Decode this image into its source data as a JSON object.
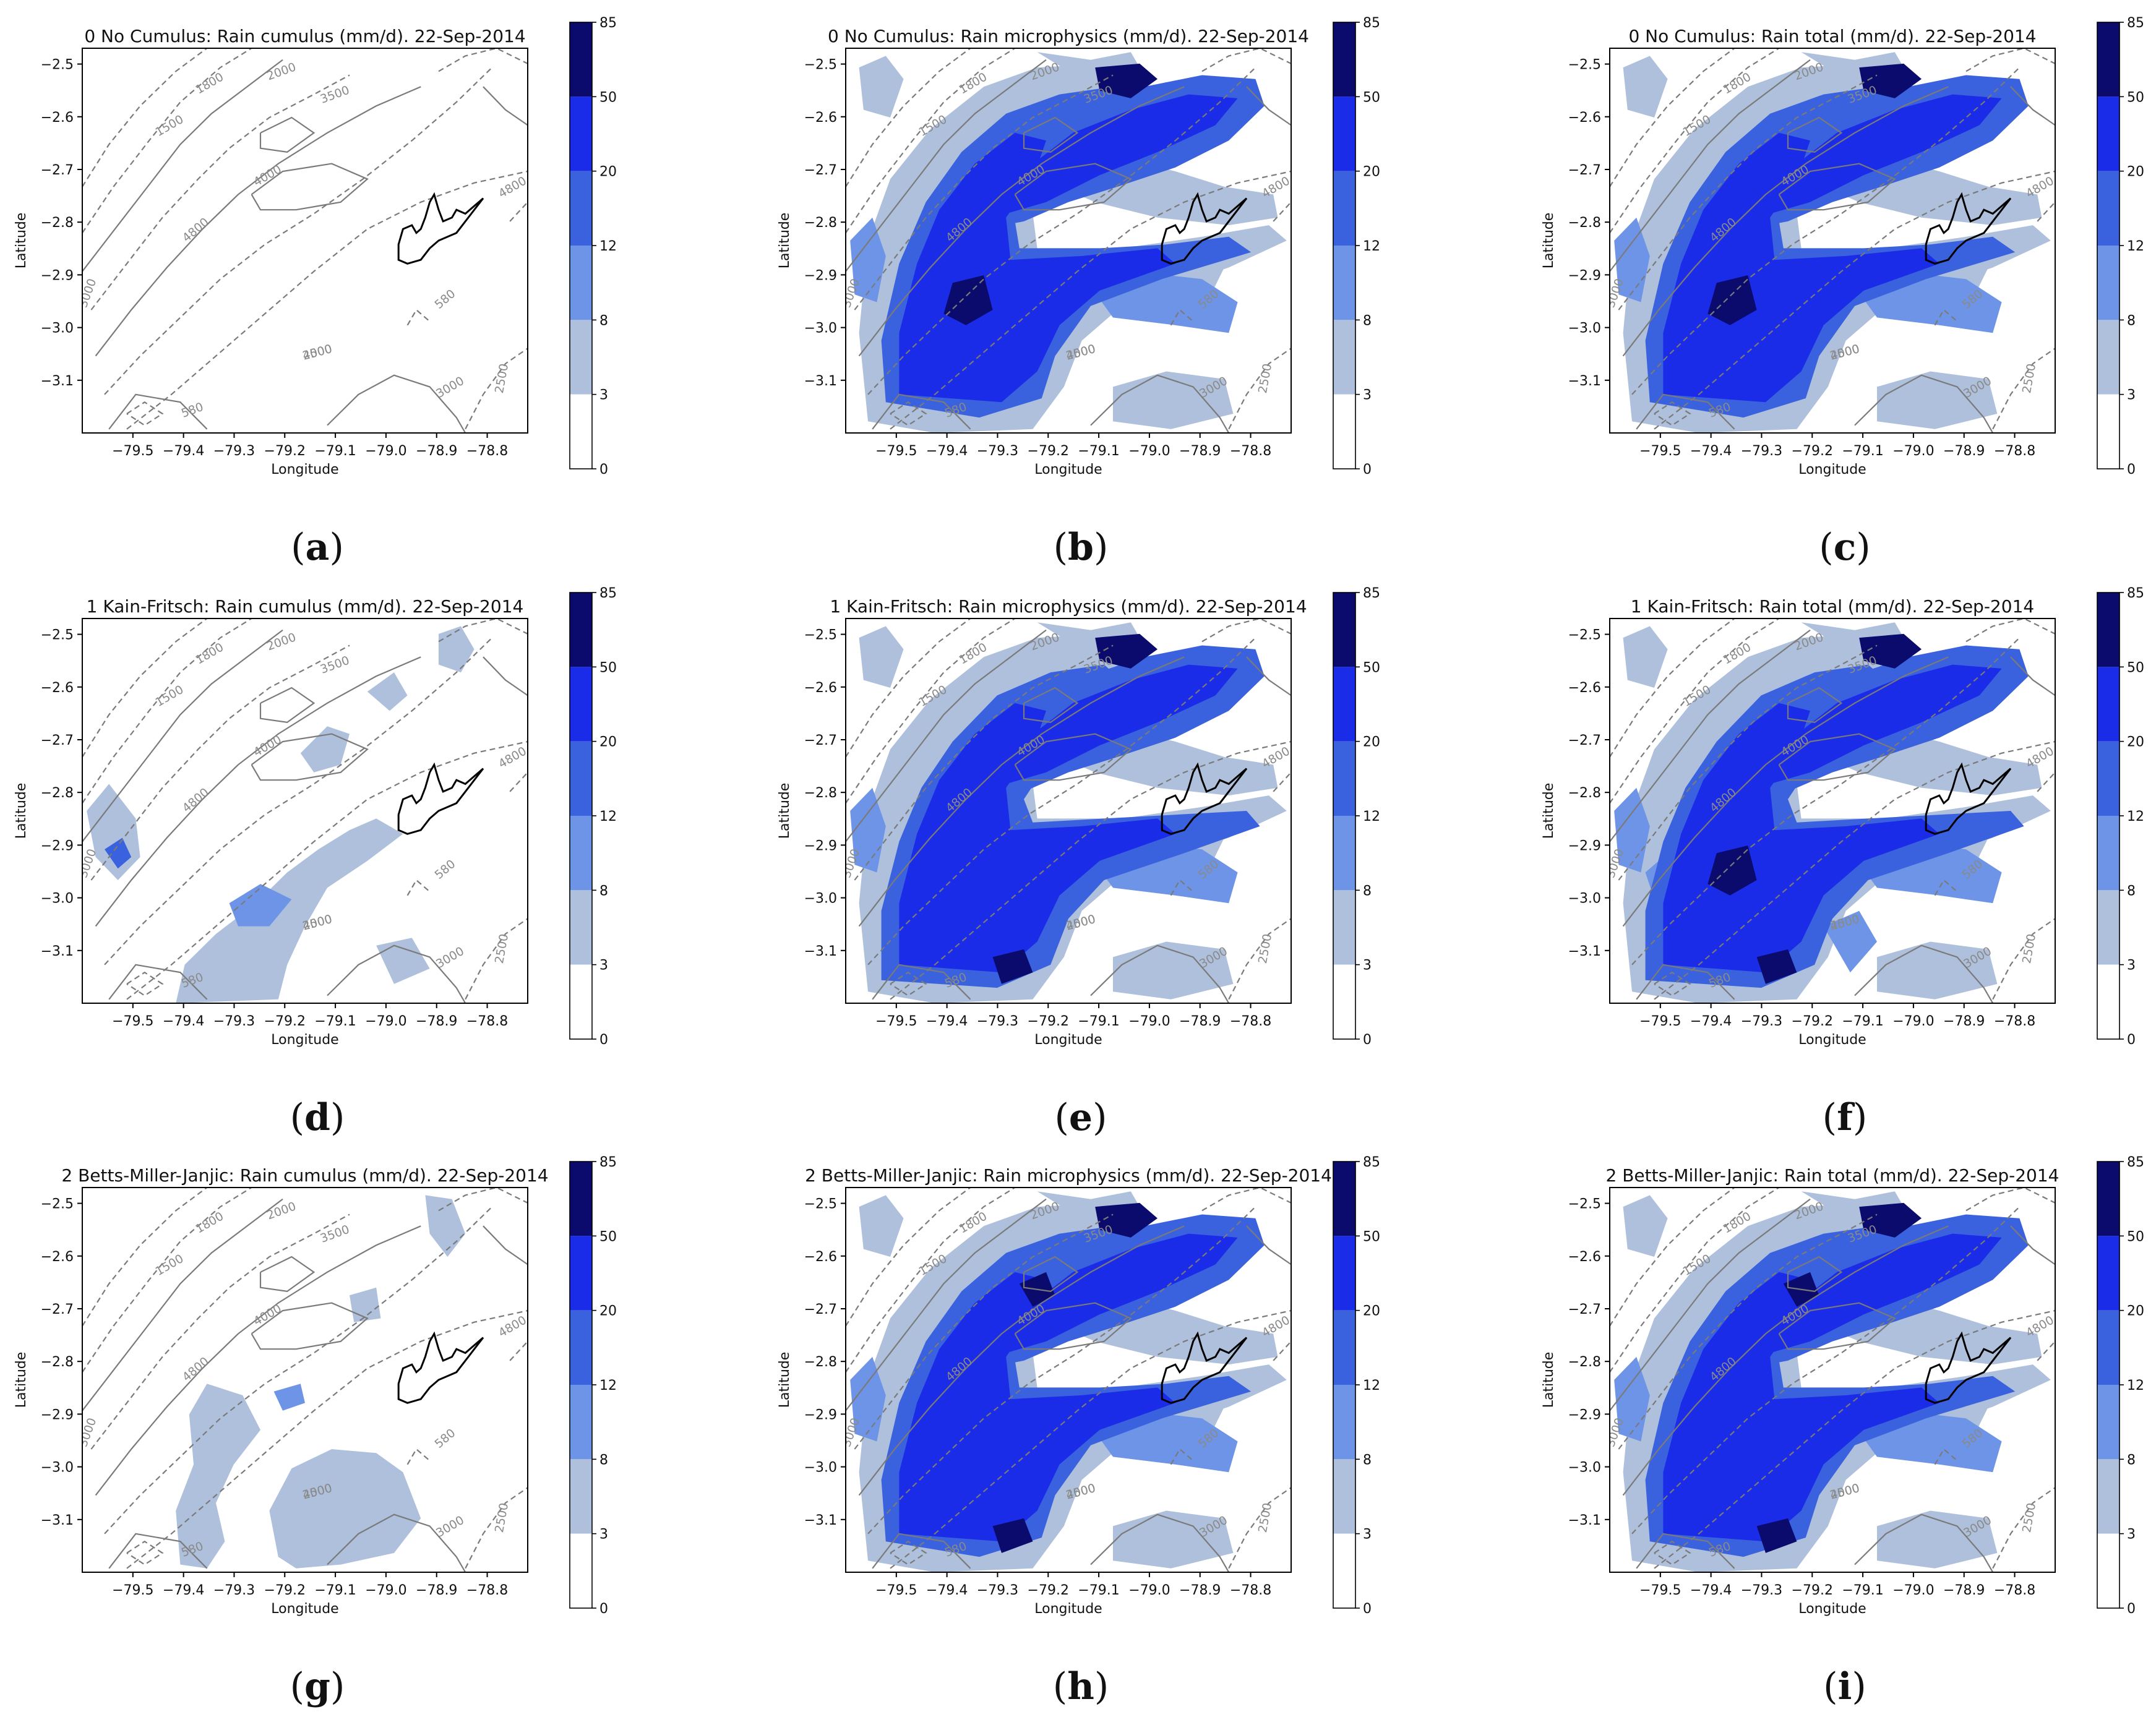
{
  "figure": {
    "colorbar_ticks": [
      "85",
      "50",
      "20",
      "12",
      "8",
      "3",
      "0"
    ],
    "colorbar_colors": [
      "#0b0b6e",
      "#1a2ce8",
      "#3b62de",
      "#6d94e6",
      "#aec0dc",
      "#ffffff"
    ],
    "contour_color": "#7a7a7a",
    "land_outline_color": "#000000"
  },
  "chart_data": [
    {
      "id": "a",
      "type": "heatmap",
      "title": "0 No Cumulus: Rain cumulus (mm/d). 22-Sep-2014",
      "xlabel": "Longitude",
      "ylabel": "Latitude",
      "letter": "a",
      "scheme": "nocu",
      "field": "cu",
      "xticks": [
        "−79.5",
        "−79.4",
        "−79.3",
        "−79.2",
        "−79.1",
        "−79.0",
        "−78.9",
        "−78.8"
      ],
      "yticks": [
        "−2.5",
        "−2.6",
        "−2.7",
        "−2.8",
        "−2.9",
        "−3.0",
        "−3.1"
      ],
      "xlim": [
        -79.6,
        -78.72
      ],
      "ylim": [
        -3.2,
        -2.47
      ],
      "colorbar_levels_mm_per_day": [
        0,
        3,
        8,
        12,
        20,
        50,
        85
      ],
      "contour_labels": [
        "1500",
        "1800",
        "2000",
        "3500",
        "4000",
        "4800",
        "3000",
        "2500",
        "580"
      ]
    },
    {
      "id": "b",
      "type": "heatmap",
      "title": "0 No Cumulus: Rain microphysics (mm/d). 22-Sep-2014",
      "xlabel": "Longitude",
      "ylabel": "Latitude",
      "letter": "b",
      "scheme": "nocu",
      "field": "mp",
      "xticks": [
        "−79.5",
        "−79.4",
        "−79.3",
        "−79.2",
        "−79.1",
        "−79.0",
        "−78.9",
        "−78.8"
      ],
      "yticks": [
        "−2.5",
        "−2.6",
        "−2.7",
        "−2.8",
        "−2.9",
        "−3.0",
        "−3.1"
      ],
      "xlim": [
        -79.6,
        -78.72
      ],
      "ylim": [
        -3.2,
        -2.47
      ],
      "colorbar_levels_mm_per_day": [
        0,
        3,
        8,
        12,
        20,
        50,
        85
      ],
      "contour_labels": [
        "1500",
        "1800",
        "2000",
        "3500",
        "4000",
        "4800",
        "3000",
        "2500",
        "580"
      ]
    },
    {
      "id": "c",
      "type": "heatmap",
      "title": "0 No Cumulus: Rain total (mm/d). 22-Sep-2014",
      "xlabel": "Longitude",
      "ylabel": "Latitude",
      "letter": "c",
      "scheme": "nocu",
      "field": "tot",
      "xticks": [
        "−79.5",
        "−79.4",
        "−79.3",
        "−79.2",
        "−79.1",
        "−79.0",
        "−78.9",
        "−78.8"
      ],
      "yticks": [
        "−2.5",
        "−2.6",
        "−2.7",
        "−2.8",
        "−2.9",
        "−3.0",
        "−3.1"
      ],
      "xlim": [
        -79.6,
        -78.72
      ],
      "ylim": [
        -3.2,
        -2.47
      ],
      "colorbar_levels_mm_per_day": [
        0,
        3,
        8,
        12,
        20,
        50,
        85
      ],
      "contour_labels": [
        "1500",
        "1800",
        "2000",
        "3500",
        "4000",
        "4800",
        "3000",
        "2500",
        "580"
      ]
    },
    {
      "id": "d",
      "type": "heatmap",
      "title": "1 Kain-Fritsch: Rain cumulus (mm/d). 22-Sep-2014",
      "xlabel": "Longitude",
      "ylabel": "Latitude",
      "letter": "d",
      "scheme": "kf",
      "field": "cu",
      "xticks": [
        "−79.5",
        "−79.4",
        "−79.3",
        "−79.2",
        "−79.1",
        "−79.0",
        "−78.9",
        "−78.8"
      ],
      "yticks": [
        "−2.5",
        "−2.6",
        "−2.7",
        "−2.8",
        "−2.9",
        "−3.0",
        "−3.1"
      ],
      "xlim": [
        -79.6,
        -78.72
      ],
      "ylim": [
        -3.2,
        -2.47
      ],
      "colorbar_levels_mm_per_day": [
        0,
        3,
        8,
        12,
        20,
        50,
        85
      ],
      "contour_labels": [
        "1500",
        "1800",
        "2000",
        "3500",
        "4000",
        "4800",
        "3000",
        "2500",
        "580"
      ]
    },
    {
      "id": "e",
      "type": "heatmap",
      "title": "1 Kain-Fritsch: Rain microphysics (mm/d). 22-Sep-2014",
      "xlabel": "Longitude",
      "ylabel": "Latitude",
      "letter": "e",
      "scheme": "kf",
      "field": "mp",
      "xticks": [
        "−79.5",
        "−79.4",
        "−79.3",
        "−79.2",
        "−79.1",
        "−79.0",
        "−78.9",
        "−78.8"
      ],
      "yticks": [
        "−2.5",
        "−2.6",
        "−2.7",
        "−2.8",
        "−2.9",
        "−3.0",
        "−3.1"
      ],
      "xlim": [
        -79.6,
        -78.72
      ],
      "ylim": [
        -3.2,
        -2.47
      ],
      "colorbar_levels_mm_per_day": [
        0,
        3,
        8,
        12,
        20,
        50,
        85
      ],
      "contour_labels": [
        "1500",
        "1800",
        "2000",
        "3500",
        "4000",
        "4800",
        "3000",
        "2500",
        "580"
      ]
    },
    {
      "id": "f",
      "type": "heatmap",
      "title": "1 Kain-Fritsch: Rain total (mm/d). 22-Sep-2014",
      "xlabel": "Longitude",
      "ylabel": "Latitude",
      "letter": "f",
      "scheme": "kf",
      "field": "tot",
      "xticks": [
        "−79.5",
        "−79.4",
        "−79.3",
        "−79.2",
        "−79.1",
        "−79.0",
        "−78.9",
        "−78.8"
      ],
      "yticks": [
        "−2.5",
        "−2.6",
        "−2.7",
        "−2.8",
        "−2.9",
        "−3.0",
        "−3.1"
      ],
      "xlim": [
        -79.6,
        -78.72
      ],
      "ylim": [
        -3.2,
        -2.47
      ],
      "colorbar_levels_mm_per_day": [
        0,
        3,
        8,
        12,
        20,
        50,
        85
      ],
      "contour_labels": [
        "1500",
        "1800",
        "2000",
        "3500",
        "4000",
        "4800",
        "3000",
        "2500",
        "580"
      ]
    },
    {
      "id": "g",
      "type": "heatmap",
      "title": "2 Betts-Miller-Janjic: Rain cumulus (mm/d). 22-Sep-2014",
      "xlabel": "Longitude",
      "ylabel": "Latitude",
      "letter": "g",
      "scheme": "bmj",
      "field": "cu",
      "xticks": [
        "−79.5",
        "−79.4",
        "−79.3",
        "−79.2",
        "−79.1",
        "−79.0",
        "−78.9",
        "−78.8"
      ],
      "yticks": [
        "−2.5",
        "−2.6",
        "−2.7",
        "−2.8",
        "−2.9",
        "−3.0",
        "−3.1"
      ],
      "xlim": [
        -79.6,
        -78.72
      ],
      "ylim": [
        -3.2,
        -2.47
      ],
      "colorbar_levels_mm_per_day": [
        0,
        3,
        8,
        12,
        20,
        50,
        85
      ],
      "contour_labels": [
        "1500",
        "1800",
        "2000",
        "3500",
        "4000",
        "4800",
        "3000",
        "2500",
        "580"
      ]
    },
    {
      "id": "h",
      "type": "heatmap",
      "title": "2 Betts-Miller-Janjic: Rain microphysics (mm/d). 22-Sep-2014",
      "xlabel": "Longitude",
      "ylabel": "Latitude",
      "letter": "h",
      "scheme": "bmj",
      "field": "mp",
      "xticks": [
        "−79.5",
        "−79.4",
        "−79.3",
        "−79.2",
        "−79.1",
        "−79.0",
        "−78.9",
        "−78.8"
      ],
      "yticks": [
        "−2.5",
        "−2.6",
        "−2.7",
        "−2.8",
        "−2.9",
        "−3.0",
        "−3.1"
      ],
      "xlim": [
        -79.6,
        -78.72
      ],
      "ylim": [
        -3.2,
        -2.47
      ],
      "colorbar_levels_mm_per_day": [
        0,
        3,
        8,
        12,
        20,
        50,
        85
      ],
      "contour_labels": [
        "1500",
        "1800",
        "2000",
        "3500",
        "4000",
        "4800",
        "3000",
        "2500",
        "580"
      ]
    },
    {
      "id": "i",
      "type": "heatmap",
      "title": "2 Betts-Miller-Janjic: Rain total (mm/d). 22-Sep-2014",
      "xlabel": "Longitude",
      "ylabel": "Latitude",
      "letter": "i",
      "scheme": "bmj",
      "field": "tot",
      "xticks": [
        "−79.5",
        "−79.4",
        "−79.3",
        "−79.2",
        "−79.1",
        "−79.0",
        "−78.9",
        "−78.8"
      ],
      "yticks": [
        "−2.5",
        "−2.6",
        "−2.7",
        "−2.8",
        "−2.9",
        "−3.0",
        "−3.1"
      ],
      "xlim": [
        -79.6,
        -78.72
      ],
      "ylim": [
        -3.2,
        -2.47
      ],
      "colorbar_levels_mm_per_day": [
        0,
        3,
        8,
        12,
        20,
        50,
        85
      ],
      "contour_labels": [
        "1500",
        "1800",
        "2000",
        "3500",
        "4000",
        "4800",
        "3000",
        "2500",
        "580"
      ]
    }
  ]
}
